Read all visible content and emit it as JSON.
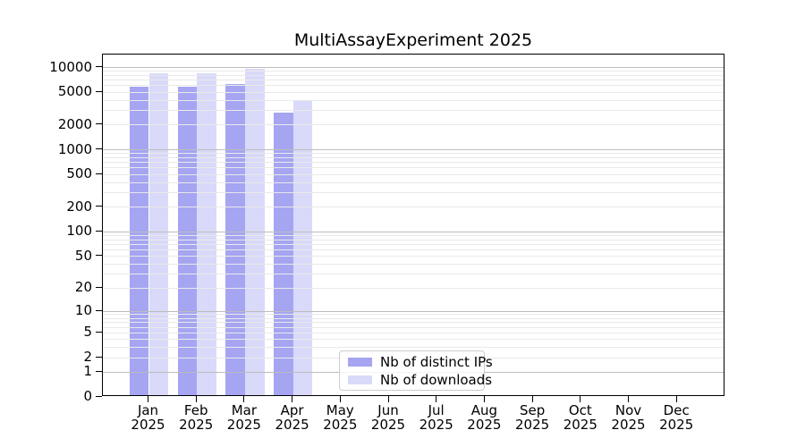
{
  "chart_data": {
    "type": "bar",
    "title": "MultiAssayExperiment 2025",
    "categories": [
      {
        "month": "Jan",
        "year": "2025"
      },
      {
        "month": "Feb",
        "year": "2025"
      },
      {
        "month": "Mar",
        "year": "2025"
      },
      {
        "month": "Apr",
        "year": "2025"
      },
      {
        "month": "May",
        "year": "2025"
      },
      {
        "month": "Jun",
        "year": "2025"
      },
      {
        "month": "Jul",
        "year": "2025"
      },
      {
        "month": "Aug",
        "year": "2025"
      },
      {
        "month": "Sep",
        "year": "2025"
      },
      {
        "month": "Oct",
        "year": "2025"
      },
      {
        "month": "Nov",
        "year": "2025"
      },
      {
        "month": "Dec",
        "year": "2025"
      }
    ],
    "series": [
      {
        "name": "Nb of distinct IPs",
        "color": "#a5a5f2",
        "values": [
          5600,
          5600,
          6000,
          2700,
          0,
          0,
          0,
          0,
          0,
          0,
          0,
          0
        ]
      },
      {
        "name": "Nb of downloads",
        "color": "#d9d9f9",
        "values": [
          8100,
          8000,
          9200,
          3700,
          0,
          0,
          0,
          0,
          0,
          0,
          0,
          0
        ]
      }
    ],
    "y_axis": {
      "scale": "log10(1+x)",
      "tick_labels": [
        10000,
        5000,
        2000,
        1000,
        500,
        200,
        100,
        50,
        20,
        10,
        5,
        2,
        1,
        0
      ],
      "top_value": 14500
    },
    "grid": {
      "major_at": [
        1,
        10,
        100,
        1000,
        10000
      ],
      "minor_multiples": [
        2,
        3,
        4,
        5,
        6,
        7,
        8,
        9
      ],
      "major_color": "#bdbdbd",
      "minor_color": "#e9e9e9"
    },
    "legend_position": "lower center-left inside plot"
  }
}
